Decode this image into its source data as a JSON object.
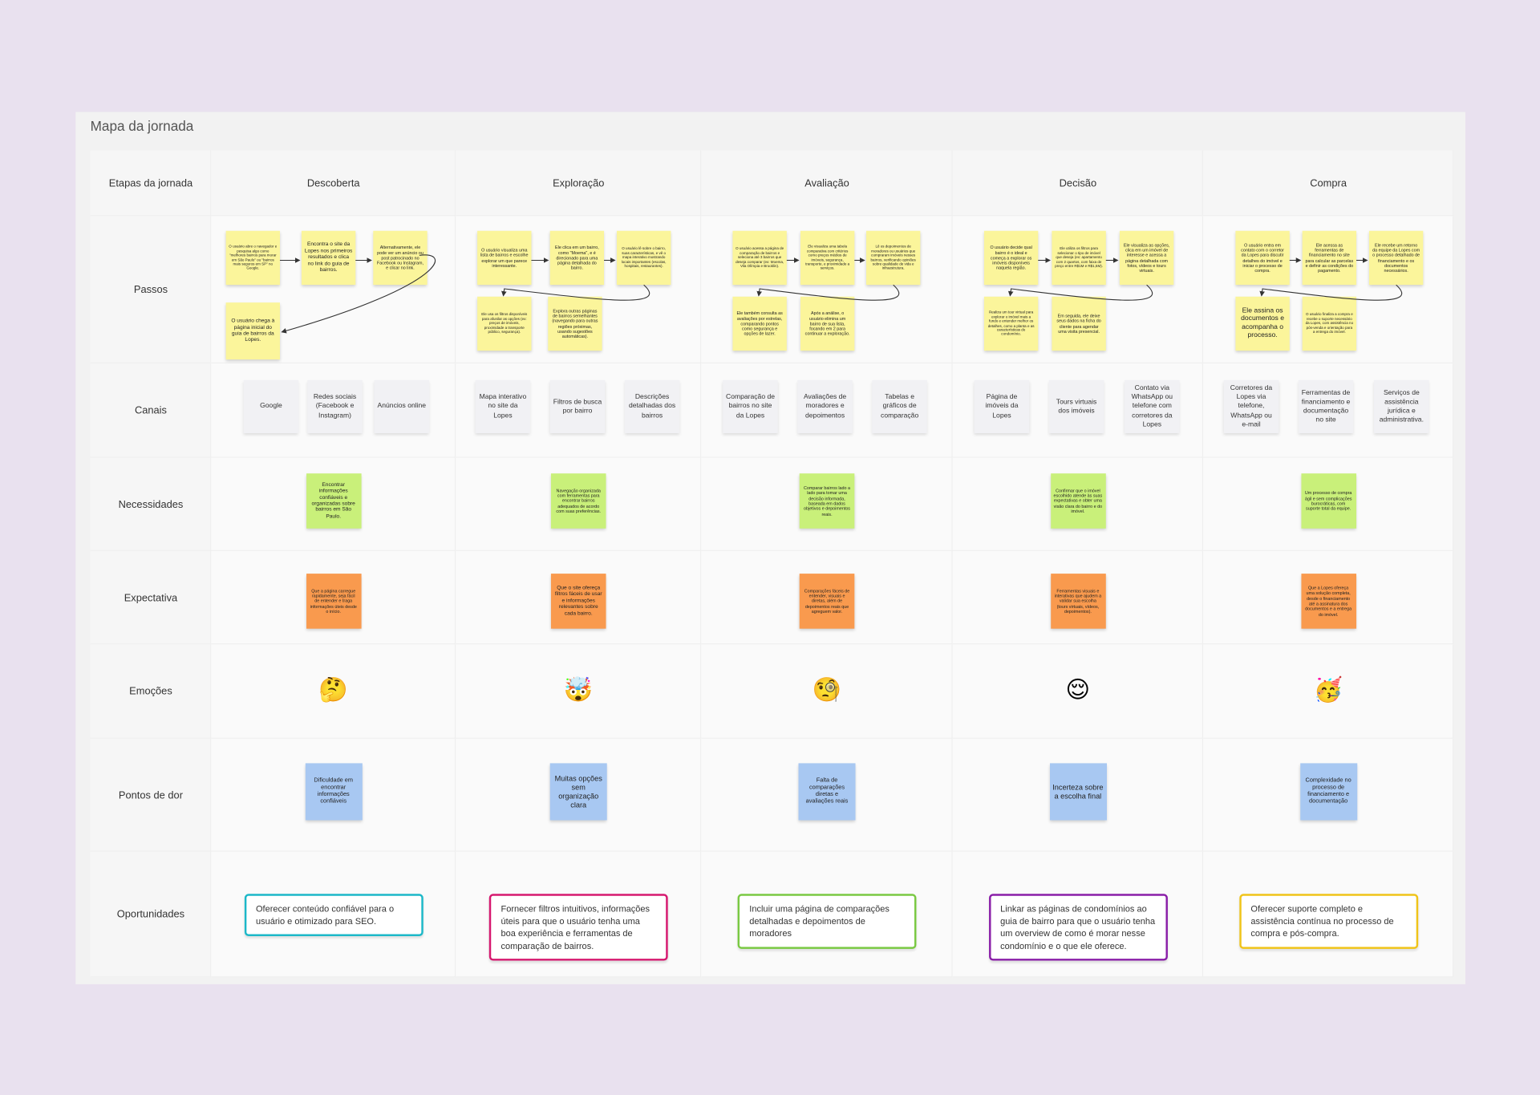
{
  "title": "Mapa da jornada",
  "corner_label": "Etapas da jornada",
  "row_labels": [
    "Passos",
    "Canais",
    "Necessidades",
    "Expectativa",
    "Emoções",
    "Pontos de dor",
    "Oportunidades"
  ],
  "stages": [
    {
      "name": "Descoberta",
      "steps": [
        "O usuário abre o navegador e pesquisa algo como \"melhores bairros para morar em São Paulo\" ou \"bairros mais seguros em SP\" no Google.",
        "Encontra o site da Lopes nos primeiros resultados e clica no link do guia de bairros.",
        "Alternativamente, ele pode ver um anúncio ou post patrocinado no Facebook ou Instagram, e clicar no link.",
        "O usuário chega à página inicial do guia de bairros da Lopes."
      ],
      "channels": [
        "Google",
        "Redes sociais (Facebook e Instagram)",
        "Anúncios online"
      ],
      "need": "Encontrar informações confiáveis e organizadas sobre bairros em São Paulo.",
      "expectation": "Que a página carregue rapidamente, seja fácil de entender e traga informações úteis desde o início.",
      "emotion": "🤔",
      "pain": "Dificuldade em encontrar informações confiáveis",
      "opportunity": "Oferecer conteúdo confiável para o usuário e otimizado para SEO."
    },
    {
      "name": "Exploração",
      "steps": [
        "O usuário visualiza uma lista de bairros e escolhe explorar um que parece interessante.",
        "Ele clica em um bairro, como \"Moema\", e é direcionado para uma página detalhada do bairro.",
        "O usuário lê sobre o bairro, suas características, e vê o mapa interativo mostrando locais importantes (escolas, hospitais, restaurantes).",
        "Ele usa os filtros disponíveis para afunilar as opções (ex: preços de imóveis, proximidade a transporte público, segurança).",
        "Explora outras páginas de bairros semelhantes (navegando para outras regiões próximas, usando sugestões automáticas)."
      ],
      "channels": [
        "Mapa interativo no site da Lopes",
        "Filtros de busca por bairro",
        "Descrições detalhadas dos bairros"
      ],
      "need": "Navegação organizada com ferramentas para encontrar bairros adequados de acordo com suas preferências.",
      "expectation": "Que o site ofereça filtros fáceis de usar e informações relevantes sobre cada bairro.",
      "emotion": "🤯",
      "pain": "Muitas opções sem organização clara",
      "opportunity": "Fornecer filtros intuitivos, informações úteis para que o usuário tenha uma boa experiência e ferramentas de comparação de bairros."
    },
    {
      "name": "Avaliação",
      "steps": [
        "O usuário acessa a página de comparação de bairros e seleciona até 3 bairros que deseja comparar (ex: Moema, Vila Olímpia e Brooklin).",
        "Ele visualiza uma tabela comparativa com critérios como preços médios de imóveis, segurança, transporte, e proximidade a serviços.",
        "Lê os depoimentos de moradores ou usuários que compraram imóveis nesses bairros, verificando opiniões sobre qualidade de vida e infraestrutura.",
        "Ele também consulta as avaliações por estrelas, comparando pontos como segurança e opções de lazer.",
        "Após a análise, o usuário elimina um bairro de sua lista, focando em 2 para continuar a exploração."
      ],
      "channels": [
        "Comparação de bairros no site da Lopes",
        "Avaliações de moradores e depoimentos",
        "Tabelas e gráficos de comparação"
      ],
      "need": "Comparar bairros lado a lado para tomar uma decisão informada, baseada em dados objetivos e depoimentos reais.",
      "expectation": "Comparações fáceis de entender, visuais e diretas, além de depoimentos reais que agreguem valor.",
      "emotion": "🧐",
      "pain": "Falta de comparações diretas e avaliações reais",
      "opportunity": "Incluir uma página de comparações detalhadas e depoimentos de moradores"
    },
    {
      "name": "Decisão",
      "steps": [
        "O usuário decide qual bairro é o ideal e começa a explorar os imóveis disponíveis naquela região.",
        "Ele utiliza os filtros para selecionar o tipo de imóvel que deseja (ex: apartamento com 2 quartos, com faixa de preço entre R$1M e R$1,5M).",
        "Ele visualiza as opções, clica em um imóvel de interesse e acessa a página detalhada com fotos, vídeos e tours virtuais.",
        "Realiza um tour virtual para explorar o imóvel mais a fundo e entender melhor os detalhes, como a planta e as características do condomínio.",
        "Em seguida, ele deixe seus dados na ficha do cliente para agendar uma visita presencial."
      ],
      "channels": [
        "Página de imóveis da Lopes",
        "Tours virtuais dos imóveis",
        "Contato via WhatsApp ou telefone com corretores da Lopes"
      ],
      "need": "Confirmar que o imóvel escolhido atende às suas expectativas e obter uma visão clara do bairro e do imóvel.",
      "expectation": "Ferramentas visuais e interativas que ajudem a validar sua escolha (tours virtuais, vídeos, depoimentos).",
      "emotion": "😌",
      "pain": "Incerteza sobre a escolha final",
      "opportunity": "Linkar as páginas de condomínios ao guia de bairro para que o usuário tenha um overview de como é morar nesse condomínio e o que ele oferece."
    },
    {
      "name": "Compra",
      "steps": [
        "O usuário entra em contato com o corretor da Lopes para discutir detalhes do imóvel e iniciar o processo de compra.",
        "Ele acessa as ferramentas de financiamento no site para calcular as parcelas e definir as condições do pagamento.",
        "Ele recebe um retorno da equipe da Lopes com o processo detalhado de financiamento e os documentos necessários.",
        "Ele assina os documentos e acompanha o processo.",
        "O usuário finaliza a compra e recebe o suporte necessário da Lopes, com assistência no pós-venda e orientação para a entrega do imóvel."
      ],
      "channels": [
        "Corretores da Lopes via telefone, WhatsApp ou e-mail",
        "Ferramentas de financiamento e documentação no site",
        "Serviços de assistência jurídica e administrativa."
      ],
      "need": "Um processo de compra ágil e sem complicações burocráticas, com suporte total da equipe.",
      "expectation": "Que a Lopes ofereça uma solução completa, desde o financiamento até a assinatura dos documentos e a entrega do imóvel.",
      "emotion": "🥳",
      "pain": "Complexidade no processo de financiamento e documentação",
      "opportunity": "Oferecer suporte completo e assistência contínua no processo de compra e pós-compra."
    }
  ]
}
